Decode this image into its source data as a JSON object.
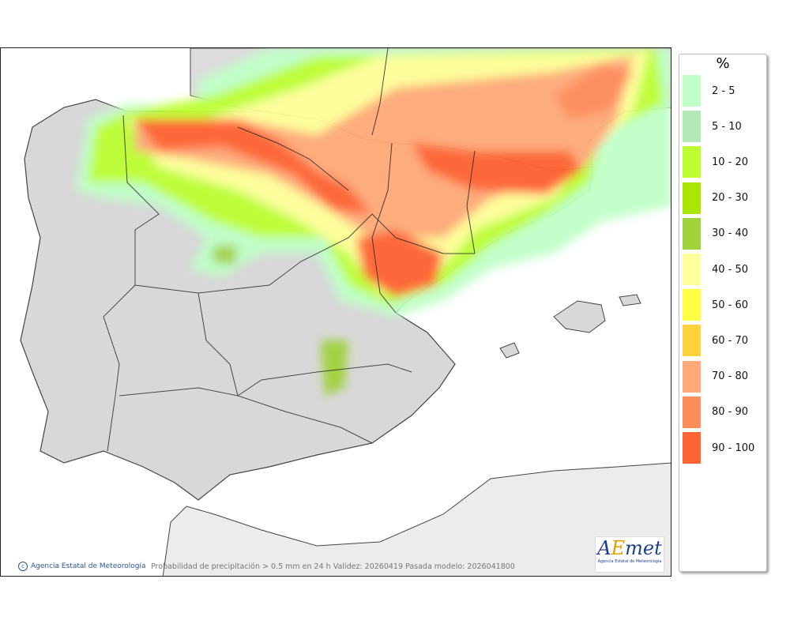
{
  "legend": {
    "unit": "%",
    "items": [
      {
        "label": "2 - 5",
        "color": "#c0ffc8"
      },
      {
        "label": "5 - 10",
        "color": "#b5e8b9"
      },
      {
        "label": "10 - 20",
        "color": "#bdff33"
      },
      {
        "label": "20 - 30",
        "color": "#aae600"
      },
      {
        "label": "30 - 40",
        "color": "#a0d23c"
      },
      {
        "label": "40 - 50",
        "color": "#ffff99"
      },
      {
        "label": "50 - 60",
        "color": "#ffff44"
      },
      {
        "label": "60 - 70",
        "color": "#ffd23c"
      },
      {
        "label": "70 - 80",
        "color": "#ffaa78"
      },
      {
        "label": "80 - 90",
        "color": "#ff8c5a"
      },
      {
        "label": "90 - 100",
        "color": "#ff6432"
      }
    ]
  },
  "footer": {
    "credit": "Agencia Estatal de Meteorología",
    "caption": "Probabilidad de precipitación > 0.5 mm en 24 h Validez: 20260419 Pasada modelo: 2026041800"
  },
  "logo": {
    "text": "AEmet",
    "subtitle": "Agencia Estatal de Meteorología"
  }
}
